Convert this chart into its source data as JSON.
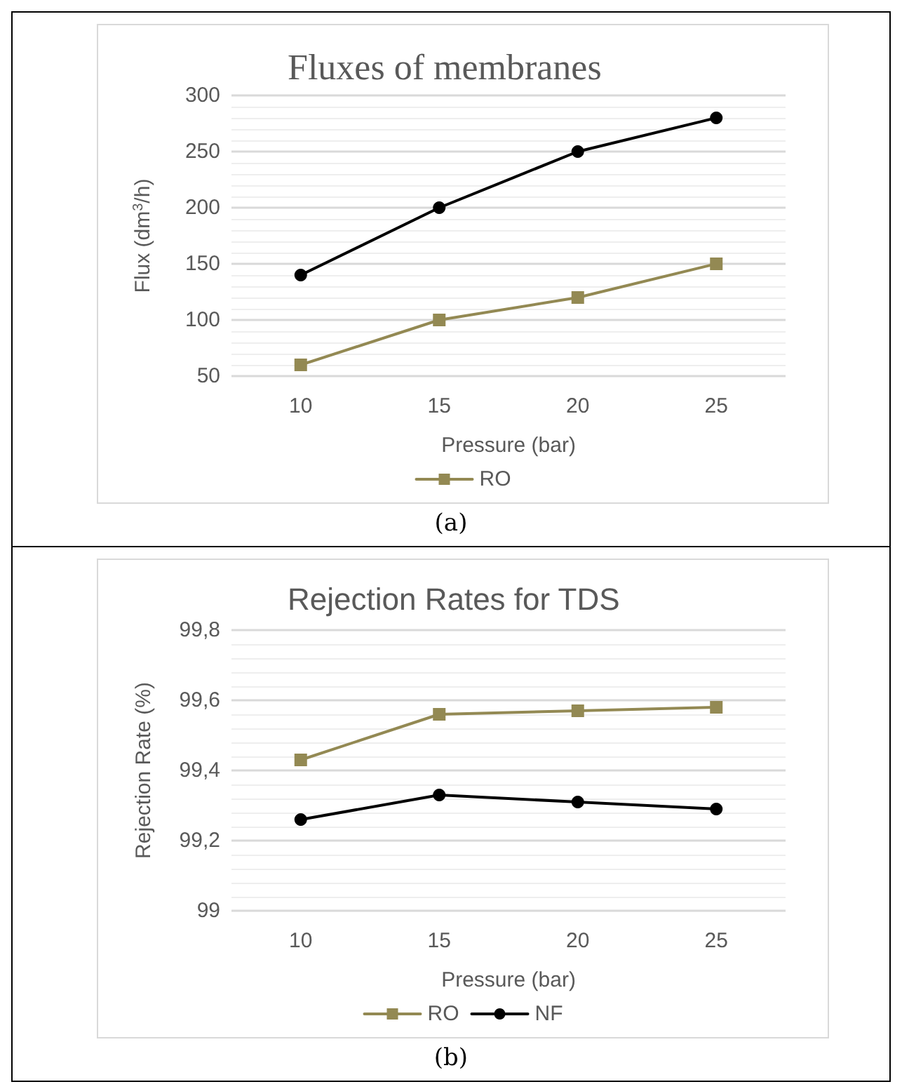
{
  "chart_data": [
    {
      "type": "line",
      "title": "Fluxes of membranes",
      "xlabel": "Pressure (bar)",
      "ylabel": "Flux (dm$^{3}$/h)",
      "categories": [
        "10",
        "15",
        "20",
        "25"
      ],
      "series": [
        {
          "name": "RO",
          "color": "#938953",
          "marker": "square",
          "values": [
            60,
            100,
            120,
            150
          ]
        },
        {
          "color": "#000000",
          "marker": "circle",
          "values": [
            140,
            200,
            250,
            280
          ]
        }
      ],
      "ylim": [
        50,
        300
      ],
      "yticks": [
        50,
        100,
        150,
        200,
        250,
        300
      ],
      "grid": "y",
      "legend": "bottom",
      "line_style": "solid",
      "annotations": [
        "(a)"
      ]
    },
    {
      "type": "line",
      "title": "Rejection Rates for TDS",
      "xlabel": "Pressure (bar)",
      "ylabel": "Rejection Rate (%)",
      "categories": [
        "10",
        "15",
        "20",
        "25"
      ],
      "series": [
        {
          "name": "RO",
          "color": "#938953",
          "marker": "square",
          "values": [
            99.43,
            99.56,
            99.57,
            99.58
          ]
        },
        {
          "name": "NF",
          "color": "#000000",
          "marker": "circle",
          "values": [
            99.26,
            99.33,
            99.31,
            99.29
          ]
        }
      ],
      "ylim": [
        99,
        99.8
      ],
      "yticks": [
        {
          "value": 99,
          "label": "99"
        },
        {
          "value": 99.2,
          "label": "99,2"
        },
        {
          "value": 99.4,
          "label": "99,4"
        },
        {
          "value": 99.6,
          "label": "99,6"
        },
        {
          "value": 99.8,
          "label": "99,8"
        }
      ],
      "grid": "y",
      "legend": "bottom",
      "line_style": "solid",
      "annotations": [
        "(b)"
      ]
    }
  ]
}
